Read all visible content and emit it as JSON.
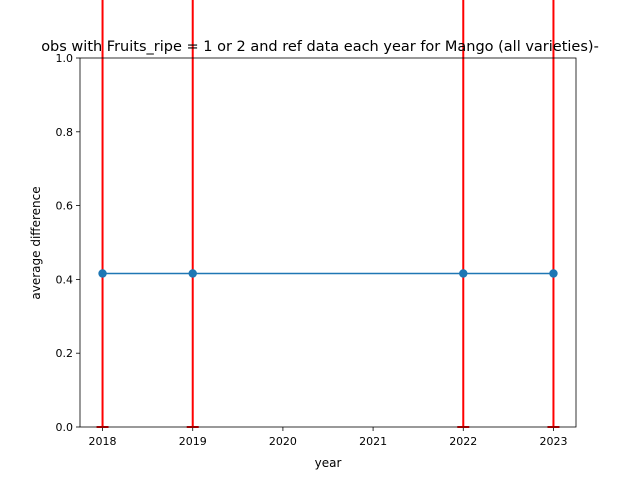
{
  "chart_data": {
    "type": "line",
    "title": "obs with Fruits_ripe = 1 or 2 and ref data each year for Mango (all varieties)-",
    "xlabel": "year",
    "ylabel": "average difference",
    "xlim": [
      2017.75,
      2023.25
    ],
    "ylim": [
      0,
      1
    ],
    "grid": false,
    "x_ticks": [
      "2018",
      "2019",
      "2020",
      "2021",
      "2022",
      "2023"
    ],
    "y_ticks": [
      "0.0",
      "0.2",
      "0.4",
      "0.6",
      "0.8",
      "1.0"
    ],
    "series": [
      {
        "x": [
          2018,
          2019,
          2022,
          2023
        ],
        "y": [
          0.416,
          0.416,
          0.416,
          0.416
        ],
        "error_lower": [
          0.416,
          0.416,
          0.416,
          0.416
        ],
        "error_upper": [
          0.91,
          0.91,
          0.91,
          0.91
        ],
        "color": "#1f77b4",
        "error_color": "#ff0000"
      }
    ]
  }
}
